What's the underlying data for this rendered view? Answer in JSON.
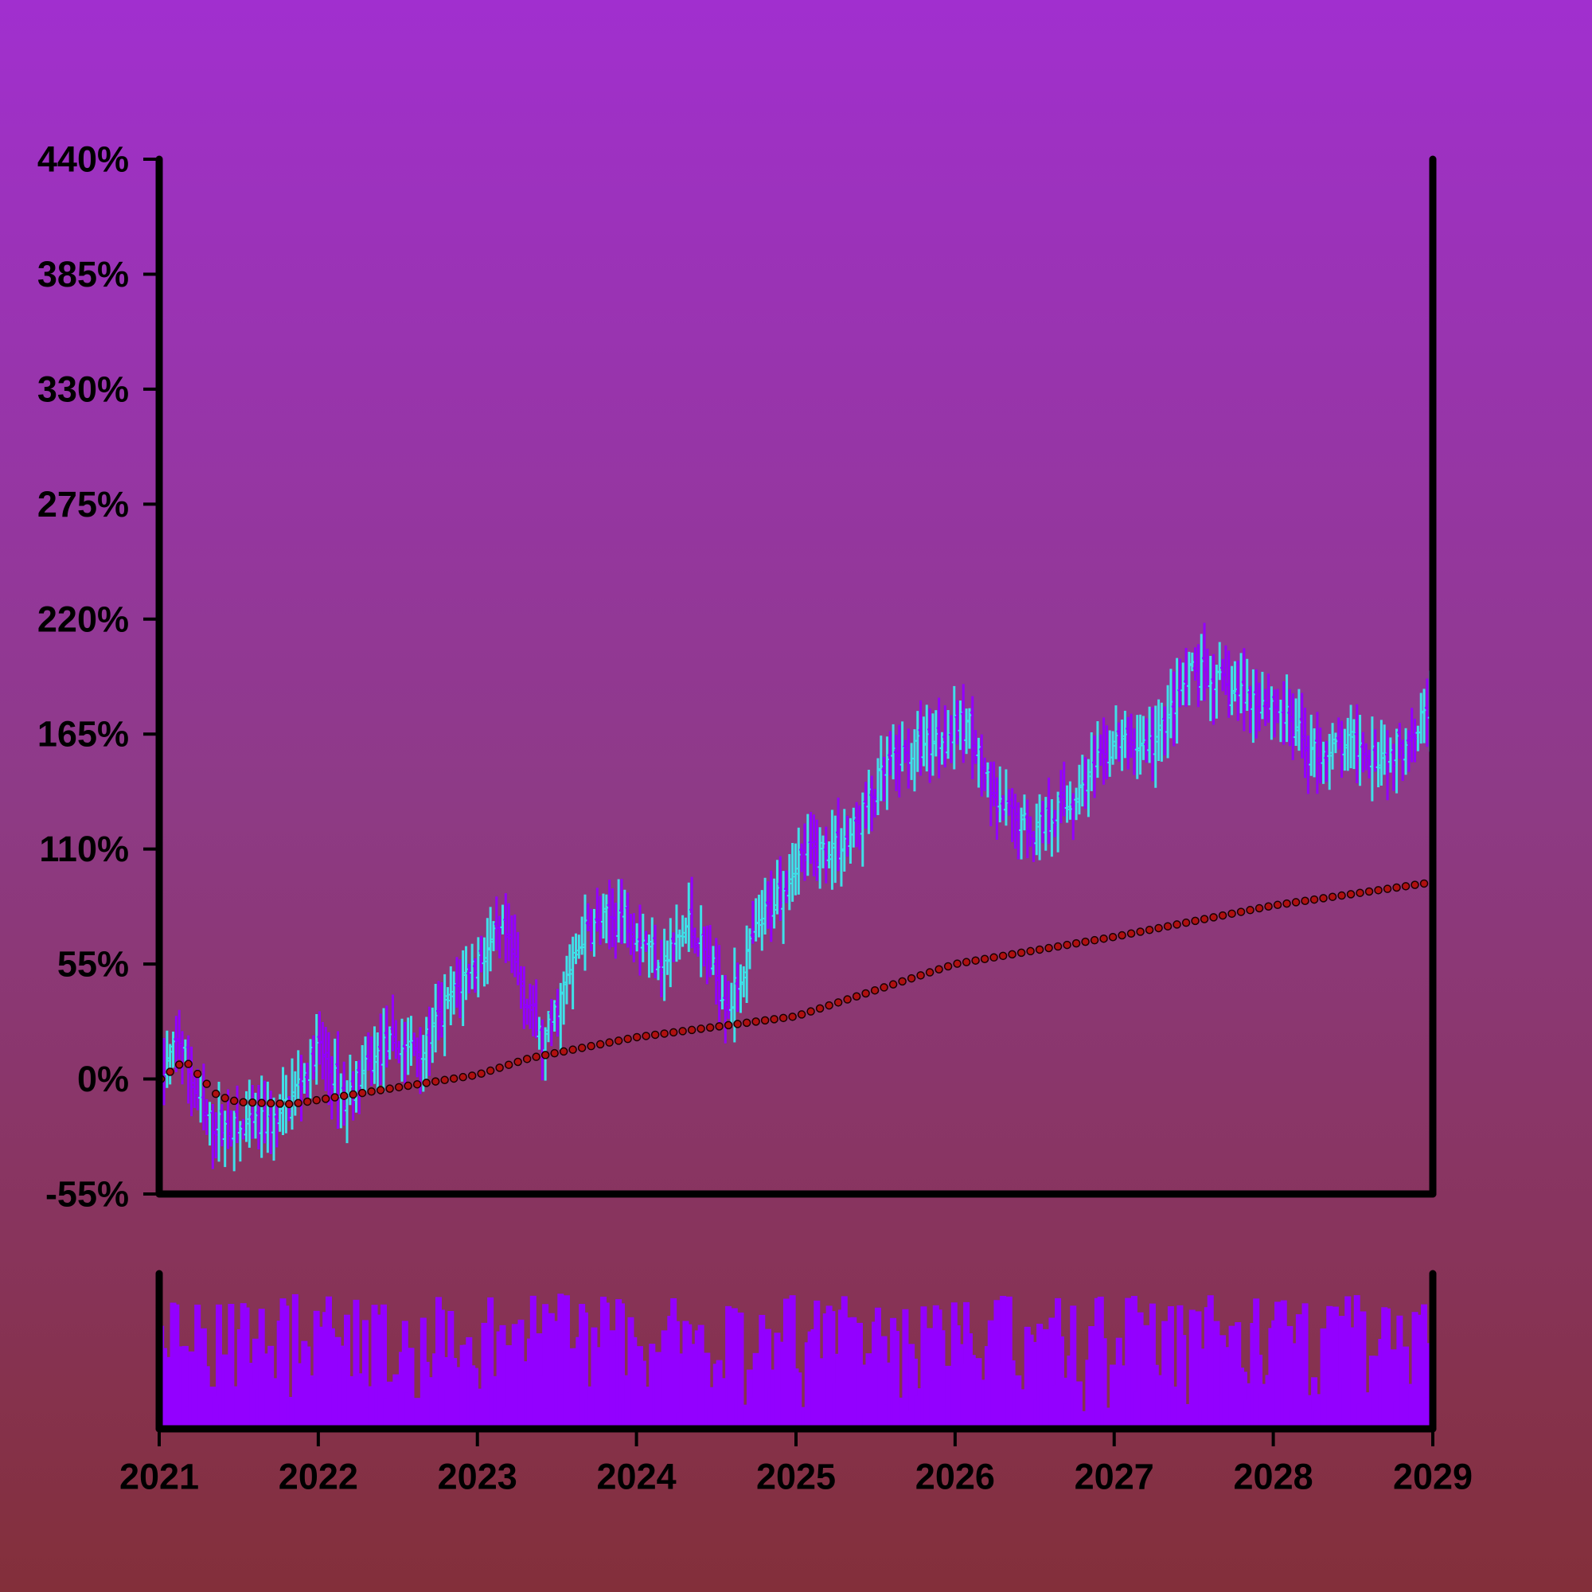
{
  "chart_data": {
    "type": "ohlc",
    "title": "",
    "xlabel": "",
    "ylabel": "",
    "colors": {
      "up": "#3fe0e8",
      "down": "#9300ff",
      "volume": "#9300ff",
      "trend_marker": "#b01010",
      "frame": "#000000",
      "background_top": "#a12fcf",
      "background_bottom": "#832f3a"
    },
    "grid": false,
    "legend": "none",
    "price_axis": {
      "ylim": [
        -55,
        440
      ],
      "ticks": [
        -55,
        0,
        55,
        110,
        165,
        220,
        275,
        330,
        385,
        440
      ],
      "tick_labels": [
        "-55%",
        "0%",
        "55%",
        "110%",
        "165%",
        "220%",
        "275%",
        "330%",
        "385%",
        "440%"
      ]
    },
    "time_axis": {
      "xlim": [
        "2021-01-01",
        "2029-01-01"
      ],
      "ticks": [
        "2021",
        "2022",
        "2023",
        "2024",
        "2025",
        "2026",
        "2027",
        "2028",
        "2029"
      ]
    },
    "price_anchors": [
      {
        "date": "2021-01-05",
        "value": 0
      },
      {
        "date": "2021-02-15",
        "value": 20
      },
      {
        "date": "2021-04-15",
        "value": -20
      },
      {
        "date": "2021-07-01",
        "value": -25
      },
      {
        "date": "2021-10-01",
        "value": -20
      },
      {
        "date": "2022-01-01",
        "value": 15
      },
      {
        "date": "2022-03-01",
        "value": -10
      },
      {
        "date": "2022-06-01",
        "value": 15
      },
      {
        "date": "2022-09-01",
        "value": 15
      },
      {
        "date": "2022-12-01",
        "value": 50
      },
      {
        "date": "2023-03-01",
        "value": 70
      },
      {
        "date": "2023-06-01",
        "value": 15
      },
      {
        "date": "2023-09-01",
        "value": 70
      },
      {
        "date": "2023-12-01",
        "value": 80
      },
      {
        "date": "2024-03-01",
        "value": 55
      },
      {
        "date": "2024-05-01",
        "value": 75
      },
      {
        "date": "2024-08-01",
        "value": 35
      },
      {
        "date": "2024-10-01",
        "value": 70
      },
      {
        "date": "2025-01-01",
        "value": 105
      },
      {
        "date": "2025-03-01",
        "value": 110
      },
      {
        "date": "2025-05-01",
        "value": 115
      },
      {
        "date": "2025-08-01",
        "value": 150
      },
      {
        "date": "2025-12-01",
        "value": 165
      },
      {
        "date": "2026-02-01",
        "value": 170
      },
      {
        "date": "2026-04-01",
        "value": 130
      },
      {
        "date": "2026-07-01",
        "value": 120
      },
      {
        "date": "2026-10-01",
        "value": 135
      },
      {
        "date": "2027-01-01",
        "value": 160
      },
      {
        "date": "2027-04-01",
        "value": 160
      },
      {
        "date": "2027-07-01",
        "value": 195
      },
      {
        "date": "2027-10-01",
        "value": 185
      },
      {
        "date": "2028-01-01",
        "value": 180
      },
      {
        "date": "2028-04-01",
        "value": 155
      },
      {
        "date": "2028-07-01",
        "value": 160
      },
      {
        "date": "2028-10-01",
        "value": 155
      },
      {
        "date": "2028-12-28",
        "value": 180
      }
    ],
    "trend_anchors": [
      {
        "date": "2021-01-05",
        "value": 0
      },
      {
        "date": "2021-03-01",
        "value": 9
      },
      {
        "date": "2021-05-15",
        "value": -8
      },
      {
        "date": "2021-07-01",
        "value": -11
      },
      {
        "date": "2021-11-01",
        "value": -12
      },
      {
        "date": "2022-01-01",
        "value": -10
      },
      {
        "date": "2023-01-01",
        "value": 2
      },
      {
        "date": "2023-05-01",
        "value": 10
      },
      {
        "date": "2024-01-01",
        "value": 20
      },
      {
        "date": "2025-01-01",
        "value": 30
      },
      {
        "date": "2026-01-01",
        "value": 55
      },
      {
        "date": "2027-01-01",
        "value": 68
      },
      {
        "date": "2028-01-01",
        "value": 83
      },
      {
        "date": "2028-12-28",
        "value": 94
      }
    ]
  }
}
